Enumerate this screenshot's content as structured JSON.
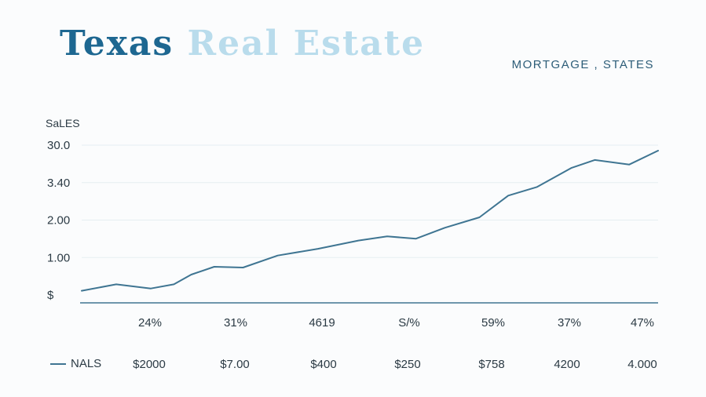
{
  "header": {
    "title_part1": "Texas",
    "title_part2": "Real Estate",
    "subtitle": "MORTGAGE , STATES"
  },
  "colors": {
    "title_primary": "#1d6791",
    "title_secondary": "#b9dcec",
    "line": "#3f7592",
    "axis": "#3f7592",
    "grid": "#e6eef2"
  },
  "chart_data": {
    "type": "line",
    "ylabel": "SaLES",
    "y_ticks": [
      {
        "label": "30.0"
      },
      {
        "label": "3.40"
      },
      {
        "label": "2.00"
      },
      {
        "label": "1.00"
      },
      {
        "label": "$"
      }
    ],
    "x_tick_labels": [
      "24%",
      "31%",
      "4619",
      "S/%",
      "59%",
      "37%",
      "47%"
    ],
    "grid": true,
    "legend": {
      "position": "bottom-left",
      "series_name": "NALS",
      "row_values": [
        "$2000",
        "$7.00",
        "$400",
        "$250",
        "$758",
        "4200",
        "4.000"
      ]
    },
    "series": [
      {
        "name": "NALS",
        "x": [
          0,
          0.06,
          0.12,
          0.16,
          0.19,
          0.23,
          0.28,
          0.34,
          0.41,
          0.48,
          0.53,
          0.58,
          0.63,
          0.69,
          0.74,
          0.79,
          0.85,
          0.89,
          0.95,
          1.0
        ],
        "y": [
          0.03,
          0.2,
          0.09,
          0.2,
          0.46,
          0.67,
          0.65,
          0.97,
          1.15,
          1.37,
          1.48,
          1.42,
          1.71,
          1.99,
          2.57,
          2.8,
          3.31,
          3.52,
          3.4,
          3.77
        ]
      }
    ]
  }
}
